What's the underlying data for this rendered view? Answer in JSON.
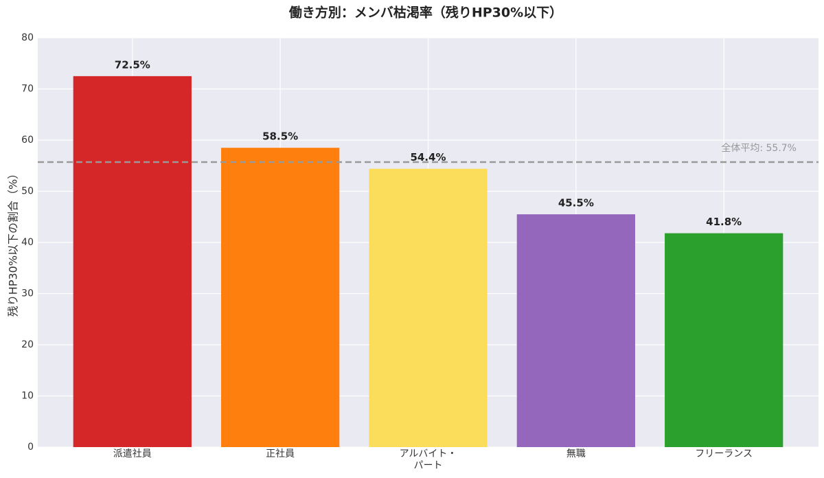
{
  "chart_data": {
    "type": "bar",
    "title": "働き方別：メンバ枯渇率（残りHP30%以下）",
    "ylabel": "残りHP30%以下の割合（%）",
    "categories": [
      "派遣社員",
      "正社員",
      "アルバイト・\nパート",
      "無職",
      "フリーランス"
    ],
    "values": [
      72.5,
      58.5,
      54.4,
      45.5,
      41.8
    ],
    "value_labels": [
      "72.5%",
      "58.5%",
      "54.4%",
      "45.5%",
      "41.8%"
    ],
    "colors": [
      "#d62728",
      "#ff7f0e",
      "#fcdc5b",
      "#9467bd",
      "#2ca02c"
    ],
    "average": {
      "value": 55.7,
      "label": "全体平均: 55.7%",
      "color": "#999999"
    },
    "ylim": [
      0,
      80
    ],
    "yticks": [
      0,
      10,
      20,
      30,
      40,
      50,
      60,
      70,
      80
    ],
    "grid": true
  }
}
